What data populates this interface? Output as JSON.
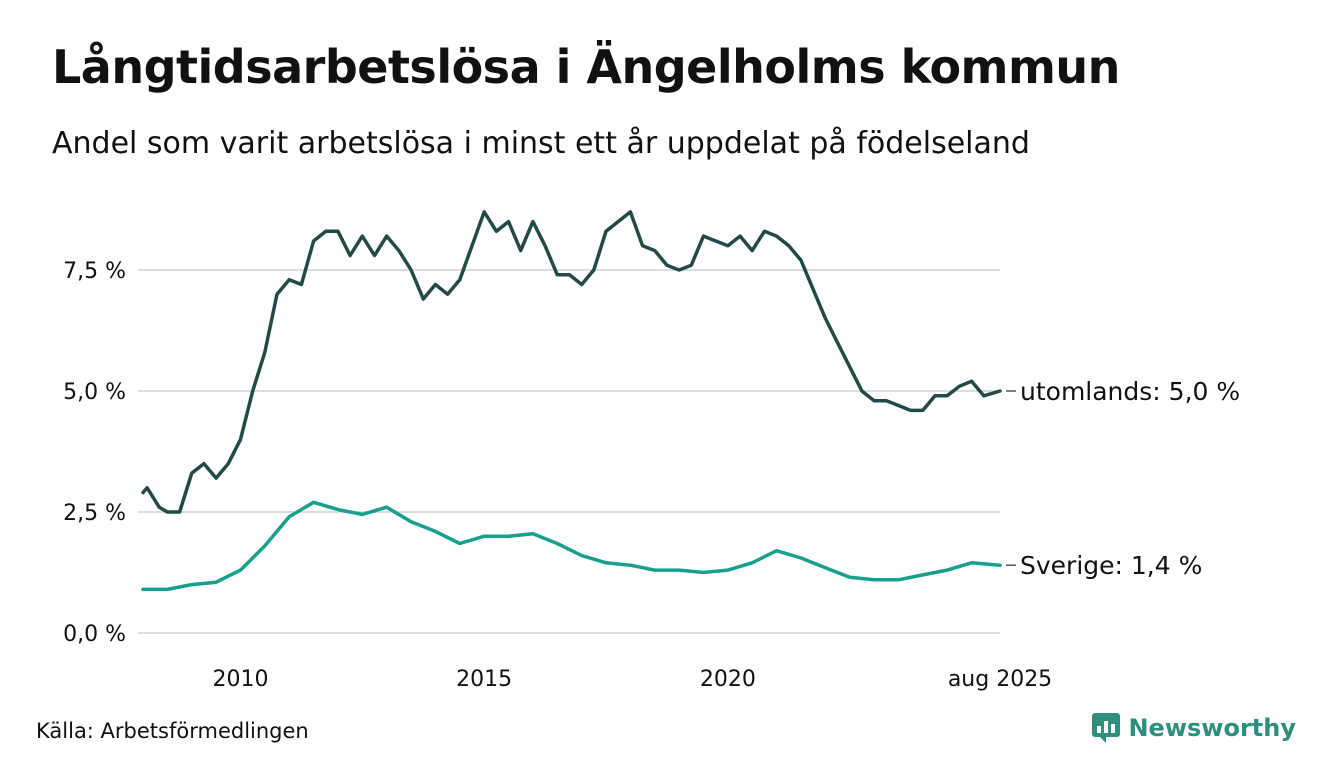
{
  "header": {
    "title": "Långtidsarbetslösa i Ängelholms kommun",
    "subtitle": "Andel som varit arbetslösa i minst ett år uppdelat på födelseland"
  },
  "footer": {
    "source": "Källa: Arbetsförmedlingen",
    "brand": "Newsworthy",
    "brand_icon": "newsworthy-logo-icon"
  },
  "colors": {
    "utomlands": "#234a44",
    "sverige": "#18a08c",
    "grid": "#dddddd",
    "brand": "#2f8f7d"
  },
  "chart_data": {
    "type": "line",
    "title": "Långtidsarbetslösa i Ängelholms kommun",
    "subtitle": "Andel som varit arbetslösa i minst ett år uppdelat på födelseland",
    "x_start": "2008-01",
    "x_end": "2025-08",
    "frequency": "monthly",
    "ylim": [
      0,
      9
    ],
    "y_ticks": [
      0,
      2.5,
      5,
      7.5
    ],
    "y_tick_labels": [
      "0,0 %",
      "2,5 %",
      "5,0 %",
      "7,5 %"
    ],
    "x_ticks": [
      "2010-01",
      "2015-01",
      "2020-01",
      "2025-08"
    ],
    "x_tick_labels": [
      "2010",
      "2015",
      "2020",
      "aug 2025"
    ],
    "grid": "horizontal",
    "legend": "end-of-line labels",
    "series": [
      {
        "name": "utomlands",
        "end_label": "utomlands: 5,0 %",
        "anchors": [
          [
            "2008-01",
            2.9
          ],
          [
            "2008-02",
            3.0
          ],
          [
            "2008-05",
            2.6
          ],
          [
            "2008-07",
            2.5
          ],
          [
            "2008-10",
            2.5
          ],
          [
            "2009-01",
            3.3
          ],
          [
            "2009-04",
            3.5
          ],
          [
            "2009-07",
            3.2
          ],
          [
            "2009-10",
            3.5
          ],
          [
            "2010-01",
            4.0
          ],
          [
            "2010-04",
            5.0
          ],
          [
            "2010-07",
            5.8
          ],
          [
            "2010-10",
            7.0
          ],
          [
            "2011-01",
            7.3
          ],
          [
            "2011-04",
            7.2
          ],
          [
            "2011-07",
            8.1
          ],
          [
            "2011-10",
            8.3
          ],
          [
            "2012-01",
            8.3
          ],
          [
            "2012-04",
            7.8
          ],
          [
            "2012-07",
            8.2
          ],
          [
            "2012-10",
            7.8
          ],
          [
            "2013-01",
            8.2
          ],
          [
            "2013-04",
            7.9
          ],
          [
            "2013-07",
            7.5
          ],
          [
            "2013-10",
            6.9
          ],
          [
            "2014-01",
            7.2
          ],
          [
            "2014-04",
            7.0
          ],
          [
            "2014-07",
            7.3
          ],
          [
            "2014-10",
            8.0
          ],
          [
            "2015-01",
            8.7
          ],
          [
            "2015-04",
            8.3
          ],
          [
            "2015-07",
            8.5
          ],
          [
            "2015-10",
            7.9
          ],
          [
            "2016-01",
            8.5
          ],
          [
            "2016-04",
            8.0
          ],
          [
            "2016-07",
            7.4
          ],
          [
            "2016-10",
            7.4
          ],
          [
            "2017-01",
            7.2
          ],
          [
            "2017-04",
            7.5
          ],
          [
            "2017-07",
            8.3
          ],
          [
            "2017-10",
            8.5
          ],
          [
            "2018-01",
            8.7
          ],
          [
            "2018-04",
            8.0
          ],
          [
            "2018-07",
            7.9
          ],
          [
            "2018-10",
            7.6
          ],
          [
            "2019-01",
            7.5
          ],
          [
            "2019-04",
            7.6
          ],
          [
            "2019-07",
            8.2
          ],
          [
            "2019-10",
            8.1
          ],
          [
            "2020-01",
            8.0
          ],
          [
            "2020-04",
            8.2
          ],
          [
            "2020-07",
            7.9
          ],
          [
            "2020-10",
            8.3
          ],
          [
            "2021-01",
            8.2
          ],
          [
            "2021-04",
            8.0
          ],
          [
            "2021-07",
            7.7
          ],
          [
            "2021-10",
            7.1
          ],
          [
            "2022-01",
            6.5
          ],
          [
            "2022-04",
            6.0
          ],
          [
            "2022-07",
            5.5
          ],
          [
            "2022-10",
            5.0
          ],
          [
            "2023-01",
            4.8
          ],
          [
            "2023-04",
            4.8
          ],
          [
            "2023-07",
            4.7
          ],
          [
            "2023-10",
            4.6
          ],
          [
            "2024-01",
            4.6
          ],
          [
            "2024-04",
            4.9
          ],
          [
            "2024-07",
            4.9
          ],
          [
            "2024-10",
            5.1
          ],
          [
            "2025-01",
            5.2
          ],
          [
            "2025-04",
            4.9
          ],
          [
            "2025-08",
            5.0
          ]
        ]
      },
      {
        "name": "Sverige",
        "end_label": "Sverige: 1,4 %",
        "anchors": [
          [
            "2008-01",
            0.9
          ],
          [
            "2008-07",
            0.9
          ],
          [
            "2009-01",
            1.0
          ],
          [
            "2009-07",
            1.05
          ],
          [
            "2010-01",
            1.3
          ],
          [
            "2010-07",
            1.8
          ],
          [
            "2011-01",
            2.4
          ],
          [
            "2011-07",
            2.7
          ],
          [
            "2012-01",
            2.55
          ],
          [
            "2012-07",
            2.45
          ],
          [
            "2013-01",
            2.6
          ],
          [
            "2013-07",
            2.3
          ],
          [
            "2014-01",
            2.1
          ],
          [
            "2014-07",
            1.85
          ],
          [
            "2015-01",
            2.0
          ],
          [
            "2015-07",
            2.0
          ],
          [
            "2016-01",
            2.05
          ],
          [
            "2016-07",
            1.85
          ],
          [
            "2017-01",
            1.6
          ],
          [
            "2017-07",
            1.45
          ],
          [
            "2018-01",
            1.4
          ],
          [
            "2018-07",
            1.3
          ],
          [
            "2019-01",
            1.3
          ],
          [
            "2019-07",
            1.25
          ],
          [
            "2020-01",
            1.3
          ],
          [
            "2020-07",
            1.45
          ],
          [
            "2021-01",
            1.7
          ],
          [
            "2021-07",
            1.55
          ],
          [
            "2022-01",
            1.35
          ],
          [
            "2022-07",
            1.15
          ],
          [
            "2023-01",
            1.1
          ],
          [
            "2023-07",
            1.1
          ],
          [
            "2024-01",
            1.2
          ],
          [
            "2024-07",
            1.3
          ],
          [
            "2025-01",
            1.45
          ],
          [
            "2025-08",
            1.4
          ]
        ]
      }
    ]
  }
}
